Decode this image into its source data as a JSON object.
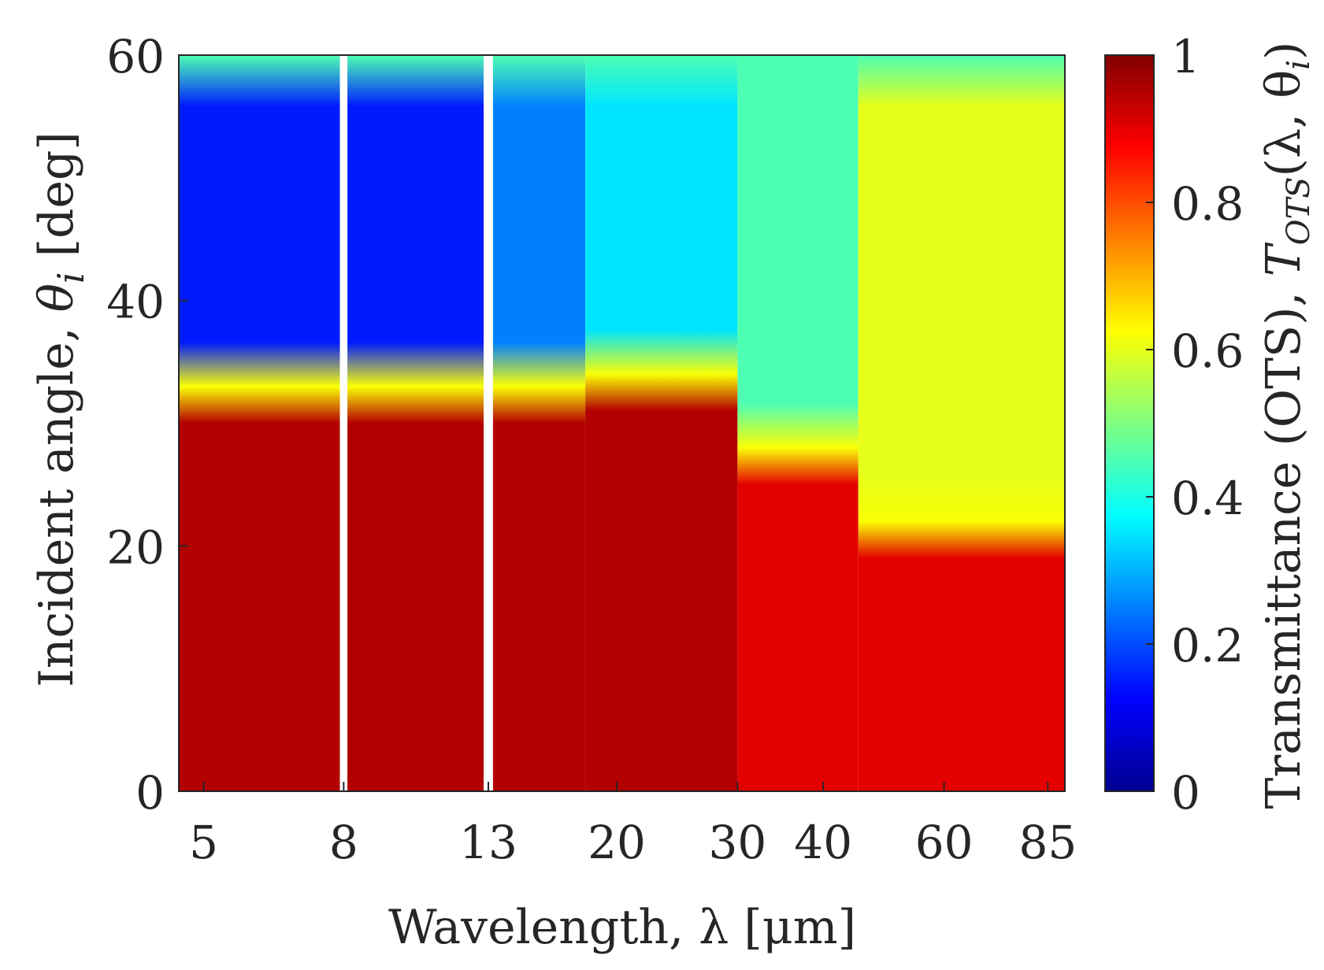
{
  "chart_data": {
    "type": "heatmap",
    "colormap": "jet",
    "xlabel": "Wavelength, λ [μm]",
    "ylabel_text": "Incident angle, ",
    "ylabel_symbol": "θ",
    "ylabel_subscript": "i",
    "ylabel_unit": " [deg]",
    "colorbar_label_text": "Transmittance (OTS), ",
    "colorbar_label_symbol": "T",
    "colorbar_label_subscript": "OTS",
    "colorbar_label_args": "(λ, θ",
    "colorbar_label_args_sub": "i",
    "colorbar_label_close": ")",
    "x_scale": "log",
    "xlim": [
      4.6,
      90
    ],
    "ylim": [
      0,
      60
    ],
    "x_ticks": [
      5,
      8,
      13,
      20,
      30,
      40,
      60,
      85
    ],
    "x_tick_labels": [
      "5",
      "8",
      "13",
      "20",
      "30",
      "40",
      "60",
      "85"
    ],
    "y_ticks": [
      0,
      20,
      40,
      60
    ],
    "y_tick_labels": [
      "0",
      "20",
      "40",
      "60"
    ],
    "colorbar_ticks": [
      0,
      0.2,
      0.4,
      0.6,
      0.8,
      1
    ],
    "colorbar_tick_labels": [
      "0",
      "0.2",
      "0.4",
      "0.6",
      "0.8",
      "1"
    ],
    "clim": [
      0,
      1
    ],
    "gaps_um": [
      [
        7.9,
        8.1
      ],
      [
        12.8,
        13.2
      ]
    ],
    "regions": [
      {
        "x_range_um": [
          4.6,
          7.9
        ],
        "transition_angle_deg": 33,
        "high_angle_value": 0.15,
        "low_angle_value": 0.95
      },
      {
        "x_range_um": [
          8.1,
          12.8
        ],
        "transition_angle_deg": 33,
        "high_angle_value": 0.15,
        "low_angle_value": 0.95
      },
      {
        "x_range_um": [
          13.2,
          18
        ],
        "transition_angle_deg": 33,
        "high_angle_value": 0.25,
        "low_angle_value": 0.95
      },
      {
        "x_range_um": [
          18,
          30
        ],
        "transition_angle_deg": 34,
        "high_angle_value": 0.35,
        "low_angle_value": 0.95
      },
      {
        "x_range_um": [
          30,
          45
        ],
        "transition_angle_deg": 28,
        "high_angle_value": 0.45,
        "low_angle_value": 0.9
      },
      {
        "x_range_um": [
          45,
          90
        ],
        "transition_angle_deg": 22,
        "high_angle_value": 0.6,
        "low_angle_value": 0.9
      }
    ]
  }
}
